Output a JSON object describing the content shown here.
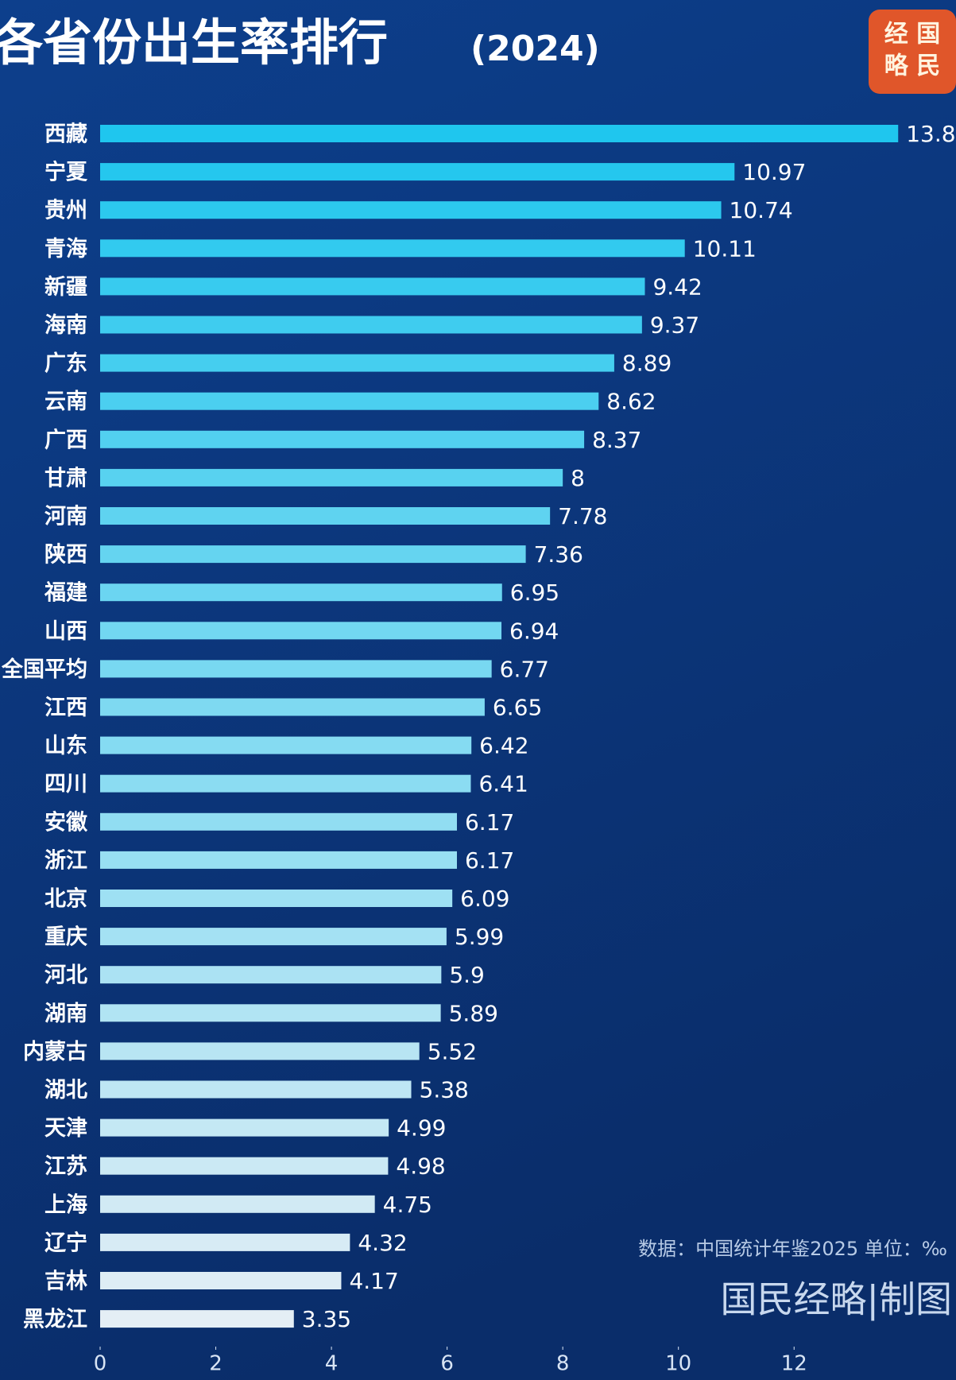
{
  "chart_data": {
    "type": "hbar",
    "title": "各省份出生率排行",
    "title_suffix": "(2024)",
    "logo": [
      "经 国",
      "略 民"
    ],
    "source_note": "数据：中国统计年鉴2025 单位：‰",
    "credit": "国民经略|制图",
    "categories": [
      "西藏",
      "宁夏",
      "贵州",
      "青海",
      "新疆",
      "海南",
      "广东",
      "云南",
      "广西",
      "甘肃",
      "河南",
      "陕西",
      "福建",
      "山西",
      "全国平均",
      "江西",
      "山东",
      "四川",
      "安徽",
      "浙江",
      "北京",
      "重庆",
      "河北",
      "湖南",
      "内蒙古",
      "湖北",
      "天津",
      "江苏",
      "上海",
      "辽宁",
      "吉林",
      "黑龙江"
    ],
    "values": [
      13.8,
      10.97,
      10.74,
      10.11,
      9.42,
      9.37,
      8.89,
      8.62,
      8.37,
      8,
      7.78,
      7.36,
      6.95,
      6.94,
      6.77,
      6.65,
      6.42,
      6.41,
      6.17,
      6.17,
      6.09,
      5.99,
      5.9,
      5.89,
      5.52,
      5.38,
      4.99,
      4.98,
      4.75,
      4.32,
      4.17,
      3.35
    ],
    "colors": [
      "#1fc6ee",
      "#e4eef5"
    ],
    "xlim": [
      0,
      14.8
    ],
    "xticks": [
      0,
      2,
      4,
      6,
      8,
      10,
      12
    ]
  }
}
